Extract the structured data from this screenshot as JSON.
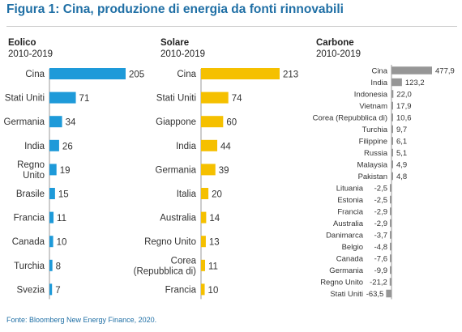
{
  "title": "Figura 1: Cina, produzione di energia da fonti rinnovabili",
  "source": "Fonte: Bloomberg New Energy Finance, 2020.",
  "colors": {
    "eolico": "#1e9ad9",
    "solare": "#f5c000",
    "carbone": "#969696",
    "title": "#1f6fa5"
  },
  "chart_data": [
    {
      "type": "bar",
      "name": "Eolico",
      "period": "2010-2019",
      "categories": [
        "Cina",
        "Stati Uniti",
        "Germania",
        "India",
        "Regno\nUnito",
        "Brasile",
        "Francia",
        "Canada",
        "Turchia",
        "Svezia"
      ],
      "values": [
        205,
        71,
        34,
        26,
        19,
        15,
        11,
        10,
        8,
        7
      ],
      "labels": [
        "205",
        "71",
        "34",
        "26",
        "19",
        "15",
        "11",
        "10",
        "8",
        "7"
      ]
    },
    {
      "type": "bar",
      "name": "Solare",
      "period": "2010-2019",
      "categories": [
        "Cina",
        "Stati Uniti",
        "Giappone",
        "India",
        "Germania",
        "Italia",
        "Australia",
        "Regno Unito",
        "Corea\n(Repubblica di)",
        "Francia"
      ],
      "values": [
        213,
        74,
        60,
        44,
        39,
        20,
        14,
        13,
        11,
        10
      ],
      "labels": [
        "213",
        "74",
        "60",
        "44",
        "39",
        "20",
        "14",
        "13",
        "11",
        "10"
      ]
    },
    {
      "type": "bar",
      "name": "Carbone",
      "period": "2010-2019",
      "categories": [
        "Cina",
        "India",
        "Indonesia",
        "Vietnam",
        "Corea (Repubblica di)",
        "Turchia",
        "Filippine",
        "Russia",
        "Malaysia",
        "Pakistan",
        "Lituania",
        "Estonia",
        "Francia",
        "Australia",
        "Danimarca",
        "Belgio",
        "Canada",
        "Germania",
        "Regno Unito",
        "Stati Uniti"
      ],
      "values": [
        477.9,
        123.2,
        22.0,
        17.9,
        10.6,
        9.7,
        6.1,
        5.1,
        4.9,
        4.8,
        -2.5,
        -2.5,
        -2.9,
        -2.9,
        -3.7,
        -4.8,
        -7.6,
        -9.9,
        -21.2,
        -63.5
      ],
      "labels": [
        "477,9",
        "123,2",
        "22,0",
        "17,9",
        "10,6",
        "9,7",
        "6,1",
        "5,1",
        "4,9",
        "4,8",
        "-2,5",
        "-2,5",
        "-2,9",
        "-2,9",
        "-3,7",
        "-4,8",
        "-7,6",
        "-9,9",
        "-21,2",
        "-63,5"
      ]
    }
  ]
}
